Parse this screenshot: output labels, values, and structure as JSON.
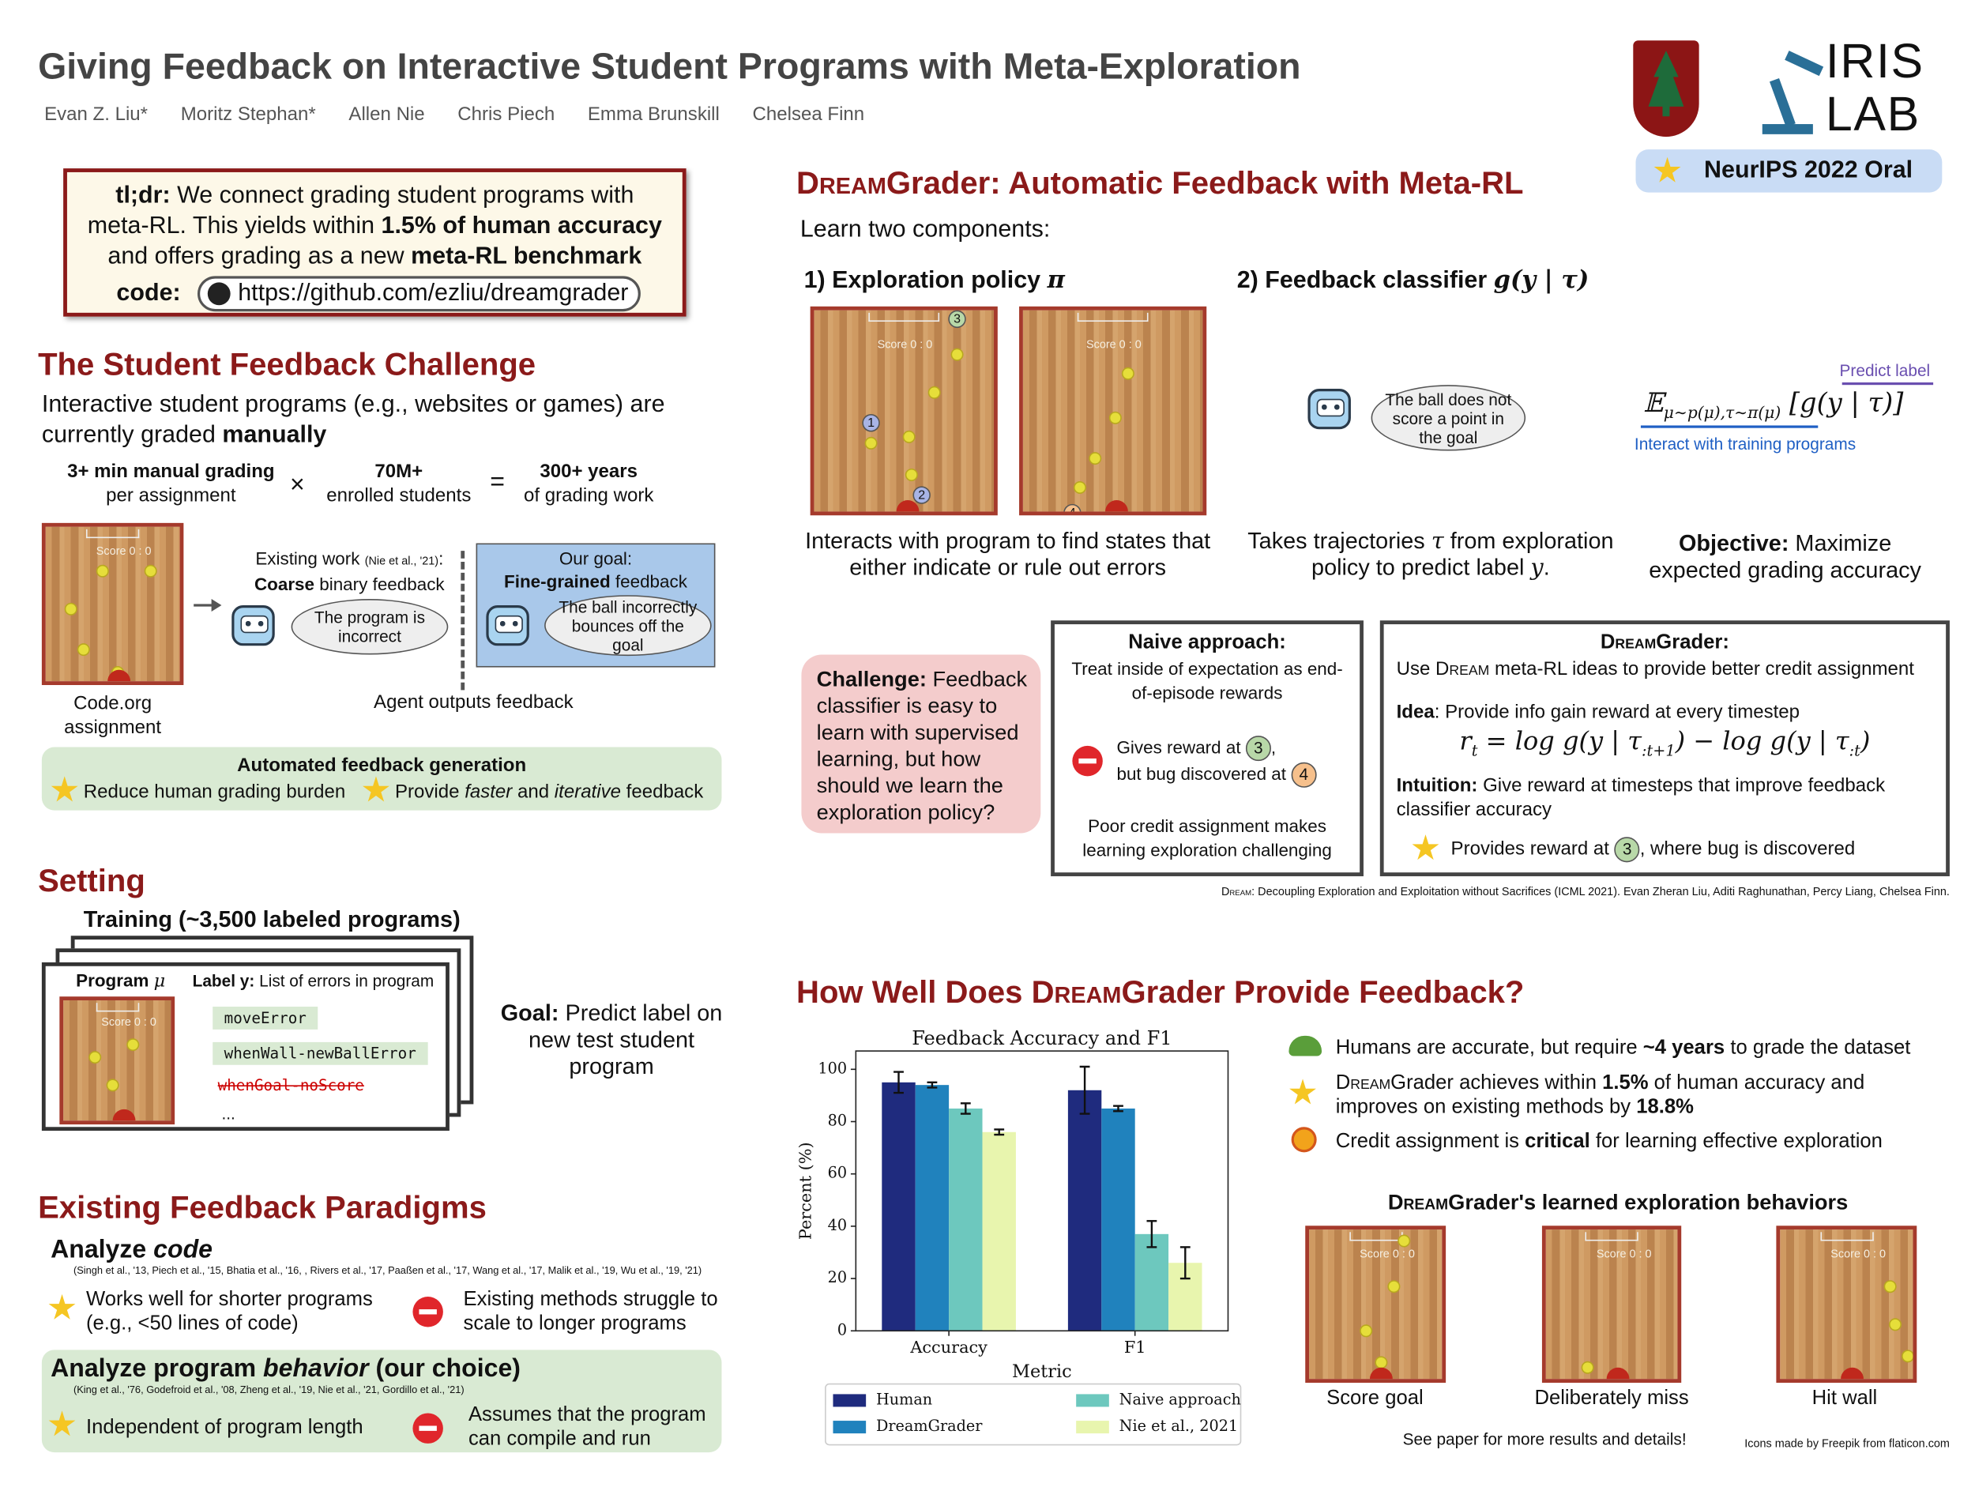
{
  "header": {
    "title": "Giving Feedback on Interactive Student Programs with Meta-Exploration",
    "authors": [
      "Evan Z. Liu*",
      "Moritz Stephan*",
      "Allen Nie",
      "Chris Piech",
      "Emma Brunskill",
      "Chelsea Finn"
    ],
    "lab_logo": [
      "IRIS",
      "LAB"
    ],
    "badge": "NeurIPS 2022 Oral"
  },
  "tldr": {
    "lines": [
      [
        {
          "text": "tl;dr:",
          "style": "bold"
        },
        " We connect grading student programs with"
      ],
      [
        "meta-RL. This yields within ",
        {
          "text": "1.5% of human accuracy",
          "style": "bold"
        }
      ],
      [
        "and offers grading as a new ",
        {
          "text": "meta-RL benchmark",
          "style": "bold"
        }
      ]
    ],
    "code_label": "code:",
    "code_url": "https://github.com/ezliu/dreamgrader"
  },
  "challenge": {
    "heading": "The Student Feedback Challenge",
    "intro": [
      [
        "Interactive student programs (e.g., websites or games) are"
      ],
      [
        "currently graded ",
        {
          "text": "manually",
          "style": "bold"
        }
      ]
    ],
    "stats": [
      {
        "top": "3+ min manual grading",
        "bottom": "per assignment"
      },
      {
        "top": "70M+",
        "bottom": "enrolled students"
      },
      {
        "top": "300+ years",
        "bottom": "of grading work"
      }
    ],
    "times": "×",
    "equals": "=",
    "example_caption": [
      "Code.org",
      "assignment"
    ],
    "court_score": "Score 0 : 0",
    "existing": [
      [
        "Existing work ",
        {
          "text": "(Nie et al., '21)",
          "style": "tiny"
        },
        ":"
      ],
      [
        {
          "text": "Coarse",
          "style": "bold"
        },
        " binary feedback"
      ]
    ],
    "existing_bubble": "The program is incorrect",
    "goal": [
      [
        "Our goal:"
      ],
      [
        {
          "text": "Fine-grained",
          "style": "bold"
        },
        " feedback"
      ]
    ],
    "goal_bubble": "The ball incorrectly bounces off the goal",
    "agent_caption": "Agent outputs feedback",
    "automated": {
      "title": "Automated feedback generation",
      "items": [
        [
          "Reduce human grading burden"
        ],
        [
          "Provide ",
          {
            "text": "faster",
            "style": "italic"
          },
          " and ",
          {
            "text": "iterative",
            "style": "italic"
          },
          " feedback"
        ]
      ]
    }
  },
  "setting": {
    "heading": "Setting",
    "training": "Training (~3,500 labeled programs)",
    "program_label": [
      {
        "text": "Program ",
        "style": "bold"
      },
      {
        "text": "μ",
        "style": "math"
      }
    ],
    "label_y": [
      {
        "text": "Label y:",
        "style": "bold"
      },
      " List of errors in program"
    ],
    "errors": [
      "moveError",
      "whenWall-newBallError"
    ],
    "struck_error": "whenGoal-noScore",
    "ellipsis": "...",
    "goal": [
      {
        "text": "Goal:",
        "style": "bold"
      },
      " Predict label on new test student program"
    ]
  },
  "paradigms": {
    "heading": "Existing Feedback Paradigms",
    "code": {
      "title": [
        "Analyze ",
        {
          "text": "code",
          "style": "italic"
        }
      ],
      "cite": "(Singh et al., '13, Piech et al., '15, Bhatia et al., '16, , Rivers et al., '17, Paaßen et al., '17, Wang et al., '17, Malik et al., '19, Wu et al., '19, '21)",
      "pro": "Works well for shorter programs (e.g., <50 lines of code)",
      "con": "Existing methods struggle to scale to longer programs"
    },
    "behavior": {
      "title": [
        "Analyze program ",
        {
          "text": "behavior",
          "style": "italic"
        },
        " (our choice)"
      ],
      "cite": "(King et al., '76, Godefroid et al., '08, Zheng et al., '19, Nie et al., '21, Gordillo et al., '21)",
      "pro": "Independent of program length",
      "con": "Assumes that the program can compile and run"
    }
  },
  "method": {
    "heading": [
      {
        "text": "Dream",
        "style": "caps"
      },
      "Grader: Automatic Feedback with Meta-RL"
    ],
    "intro": "Learn two components:",
    "policy_title": [
      "1) Exploration policy ",
      {
        "text": "π",
        "style": "math"
      }
    ],
    "classifier_title": [
      "2) Feedback classifier ",
      {
        "text": "g(y | τ)",
        "style": "math"
      }
    ],
    "markers": [
      "1",
      "2",
      "3",
      "4"
    ],
    "policy_caption": "Interacts with program to find states that either indicate or rule out errors",
    "classifier_bubble": "The ball does not score a point in the goal",
    "classifier_caption": [
      "Takes trajectories ",
      {
        "text": "τ",
        "style": "math"
      },
      " from exploration policy to predict label ",
      {
        "text": "y",
        "style": "math"
      },
      "."
    ],
    "objective_formula": [
      {
        "text": "𝔼",
        "style": "math"
      },
      {
        "text": "μ∼p(μ),τ∼π(μ)",
        "style": "sub"
      },
      {
        "text": " [g(y | τ)]",
        "style": "math"
      }
    ],
    "predict_label": "Predict label",
    "interact_label": "Interact with training programs",
    "objective": [
      {
        "text": "Objective:",
        "style": "bold"
      },
      " Maximize expected grading accuracy"
    ],
    "challenge": [
      {
        "text": "Challenge:",
        "style": "bold"
      },
      " Feedback classifier is easy to learn with supervised learning, but how should we learn the exploration policy?"
    ],
    "naive": {
      "title": "Naive approach:",
      "desc": "Treat inside of expectation as end-of-episode rewards",
      "reward": [
        [
          "Gives reward at ",
          {
            "text": "3",
            "style": "badge-green"
          },
          ","
        ],
        [
          "but bug discovered at ",
          {
            "text": "4",
            "style": "badge-orange"
          }
        ]
      ],
      "conclusion": "Poor credit assignment makes learning exploration challenging"
    },
    "dreamgrader": {
      "title": [
        {
          "text": "Dream",
          "style": "caps"
        },
        "Grader:"
      ],
      "desc": [
        "Use ",
        {
          "text": "Dream",
          "style": "caps"
        },
        " meta-RL ideas to provide better credit assignment"
      ],
      "idea": [
        {
          "text": "Idea",
          "style": "bold"
        },
        ": Provide info gain reward at every timestep"
      ],
      "formula": [
        {
          "text": "r",
          "style": "math"
        },
        {
          "text": "t",
          "style": "sub"
        },
        {
          "text": " = log g(y | τ",
          "style": "math"
        },
        {
          "text": ":t+1",
          "style": "sub"
        },
        {
          "text": ") − log g(y | τ",
          "style": "math"
        },
        {
          "text": ":t",
          "style": "sub"
        },
        {
          "text": ")",
          "style": "math"
        }
      ],
      "intuition": [
        {
          "text": "Intuition:",
          "style": "bold"
        },
        " Give reward at timesteps that improve feedback classifier accuracy"
      ],
      "reward": [
        "Provides reward at ",
        {
          "text": "3",
          "style": "badge-green"
        },
        ", where bug is discovered"
      ]
    },
    "footnote": [
      {
        "text": "Dream",
        "style": "caps"
      },
      ": Decoupling Exploration and Exploitation without Sacrifices (ICML 2021). Evan Zheran Liu, Aditi Raghunathan, Percy Liang, Chelsea Finn."
    ]
  },
  "results": {
    "heading": [
      "How Well Does ",
      {
        "text": "Dream",
        "style": "caps"
      },
      "Grader Provide Feedback?"
    ],
    "findings": [
      [
        "Humans are accurate, but require ",
        {
          "text": "~4 years",
          "style": "bold"
        },
        " to grade the dataset"
      ],
      [
        {
          "text": "Dream",
          "style": "caps"
        },
        "Grader achieves within ",
        {
          "text": "1.5%",
          "style": "bold"
        },
        " of human accuracy and improves on existing methods by ",
        {
          "text": "18.8%",
          "style": "bold"
        }
      ],
      [
        "Credit assignment is ",
        {
          "text": "critical",
          "style": "bold"
        },
        " for learning effective exploration"
      ]
    ],
    "behaviors_title": [
      {
        "text": "Dream",
        "style": "caps"
      },
      "Grader's learned exploration behaviors"
    ],
    "behaviors": [
      "Score goal",
      "Deliberately miss",
      "Hit wall"
    ],
    "more": "See paper for more results and details!",
    "credit": "Icons made by Freepik from flaticon.com"
  },
  "chart_data": {
    "type": "bar",
    "title": "Feedback Accuracy and F1",
    "x_label": "Metric",
    "y_label": "Percent (%)",
    "categories": [
      "Accuracy",
      "F1"
    ],
    "series": [
      {
        "name": "Human",
        "color": "#1f2b7e",
        "values": [
          95,
          92
        ],
        "errors": [
          4,
          9
        ]
      },
      {
        "name": "DreamGrader",
        "color": "#2082bd",
        "values": [
          94,
          85
        ],
        "errors": [
          1,
          1
        ]
      },
      {
        "name": "Naive approach",
        "color": "#6dc8be",
        "values": [
          85,
          37
        ],
        "errors": [
          2,
          5
        ]
      },
      {
        "name": "Nie et al., 2021",
        "color": "#e8f5ae",
        "values": [
          76,
          26
        ],
        "errors": [
          1,
          6
        ]
      }
    ],
    "ylim": [
      0,
      107
    ],
    "yticks": [
      0,
      20,
      40,
      60,
      80,
      100
    ]
  }
}
